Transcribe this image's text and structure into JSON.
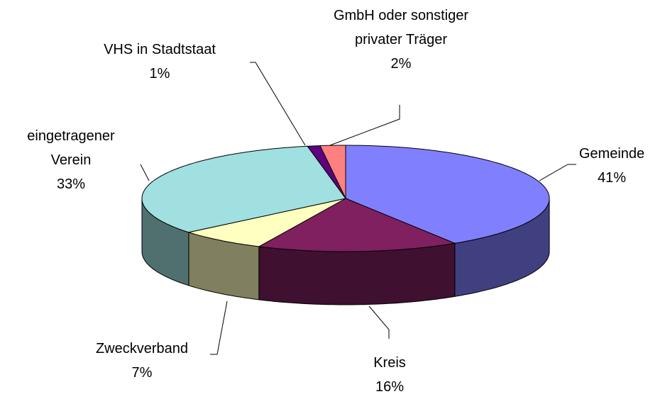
{
  "chart_data": {
    "type": "pie3d",
    "categories": [
      "Gemeinde",
      "Kreis",
      "Zweckverband",
      "eingetragener Verein",
      "VHS in Stadtstaat",
      "GmbH oder sonstiger privater Träger"
    ],
    "values": [
      41,
      16,
      7,
      33,
      1,
      2
    ],
    "value_labels": [
      "41%",
      "16%",
      "7%",
      "33%",
      "1%",
      "2%"
    ],
    "colors": [
      "#8080ff",
      "#802060",
      "#ffffc0",
      "#a0e0e0",
      "#600080",
      "#ff8080"
    ]
  }
}
